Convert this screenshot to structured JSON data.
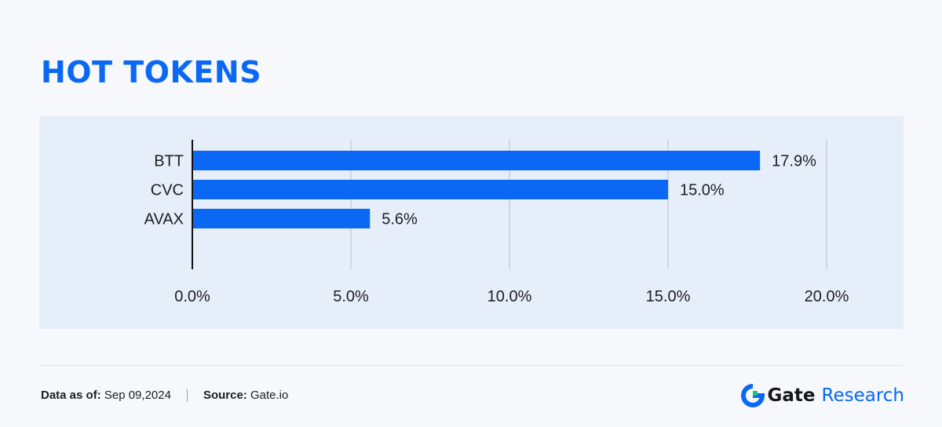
{
  "title": "HOT TOKENS",
  "colors": {
    "accent": "#0a68f5",
    "bar": "#0a68f5",
    "panel": "#e6eef9",
    "grid": "#c6d0dd",
    "axis": "#111111",
    "text": "#1d1d1f",
    "brand_green": "#19c67a"
  },
  "chart_data": {
    "type": "bar",
    "orientation": "horizontal",
    "categories": [
      "BTT",
      "CVC",
      "AVAX"
    ],
    "values": [
      17.9,
      15.0,
      5.6
    ],
    "value_labels": [
      "17.9%",
      "15.0%",
      "5.6%"
    ],
    "xlim": [
      0,
      20
    ],
    "x_ticks": [
      0,
      5,
      10,
      15,
      20
    ],
    "x_tick_labels": [
      "0.0%",
      "5.0%",
      "10.0%",
      "15.0%",
      "20.0%"
    ],
    "grid": true,
    "legend": "none"
  },
  "footer": {
    "date_label": "Data as of:",
    "date_value": "Sep 09,2024",
    "source_label": "Source:",
    "source_value": "Gate.io"
  },
  "brand": {
    "icon": "gate-logo-icon",
    "name": "Gate",
    "suffix": "Research"
  }
}
